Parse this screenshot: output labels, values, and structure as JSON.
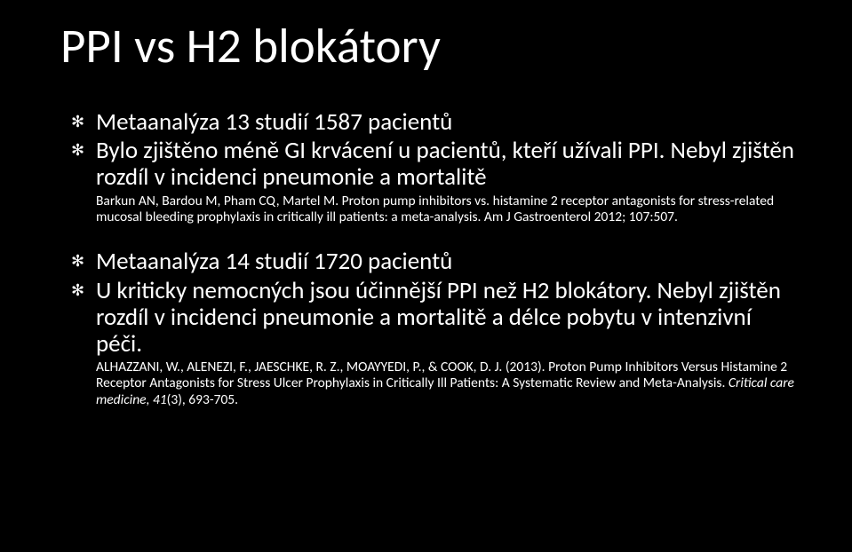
{
  "title": "PPI vs H2 blokátory",
  "bullets": {
    "b1": "Metaanalýza 13 studií 1587 pacientů",
    "b2": "Bylo zjištěno méně GI krvácení u pacientů, kteří užívali PPI. Nebyl zjištěn rozdíl v incidenci pneumonie a mortalitě",
    "b3": "Metaanalýza 14 studií 1720 pacientů",
    "b4": "U kriticky nemocných jsou účinnější PPI než H2 blokátory. Nebyl zjištěn rozdíl v incidenci pneumonie a mortalitě a délce pobytu v intenzivní péči."
  },
  "cites": {
    "c1": "Barkun AN, Bardou M, Pham CQ, Martel M. Proton pump inhibitors vs. histamine 2 receptor antagonists for stress-related mucosal bleeding prophylaxis in critically ill patients: a meta-analysis. Am J Gastroenterol 2012; 107:507.",
    "c2a": "ALHAZZANI, W., ALENEZI, F., JAESCHKE, R. Z., MOAYYEDI, P., & COOK, D. J. (2013). Proton Pump Inhibitors Versus Histamine 2 Receptor Antagonists for Stress Ulcer Prophylaxis in Critically Ill Patients: A Systematic Review and Meta-Analysis. ",
    "c2b": "Critical care medicine, 41",
    "c2c": "(3), 693-705."
  }
}
